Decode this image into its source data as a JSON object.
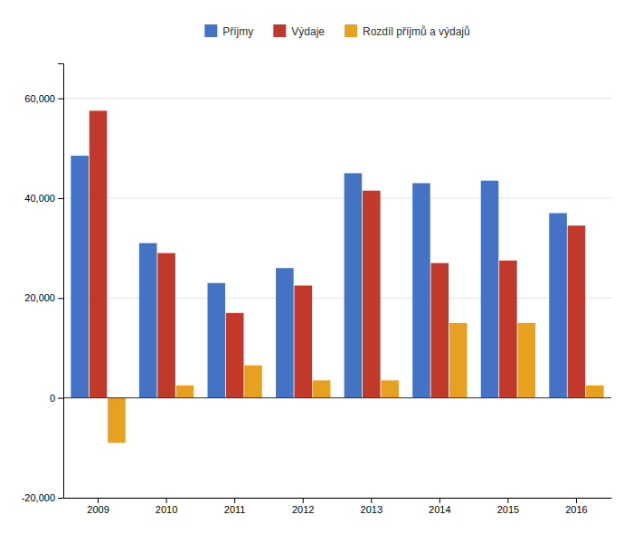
{
  "chart_data": {
    "type": "bar",
    "categories": [
      "2009",
      "2010",
      "2011",
      "2012",
      "2013",
      "2014",
      "2015",
      "2016"
    ],
    "series": [
      {
        "name": "Příjmy",
        "color": "#4472C4",
        "values": [
          48500,
          31000,
          23000,
          26000,
          45000,
          43000,
          43500,
          37000
        ]
      },
      {
        "name": "Výdaje",
        "color": "#C0392B",
        "values": [
          57500,
          29000,
          17000,
          22500,
          41500,
          27000,
          27500,
          34500
        ]
      },
      {
        "name": "Rozdíl příjmů a výdajů",
        "color": "#E8A020",
        "values": [
          -9000,
          2500,
          6500,
          3500,
          3500,
          15000,
          15000,
          2500
        ]
      }
    ],
    "ylim": [
      -20000,
      67000
    ],
    "yticks": [
      {
        "value": -20000,
        "label": "-20,000"
      },
      0,
      {
        "value": 20000,
        "label": "20,000"
      },
      {
        "value": 40000,
        "label": "40,000"
      },
      {
        "value": 60000,
        "label": "60,000"
      }
    ],
    "grid": true,
    "legend": "top"
  }
}
